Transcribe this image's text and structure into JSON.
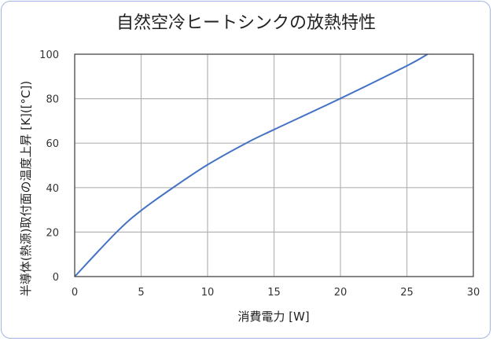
{
  "chart_data": {
    "type": "line",
    "title": "自然空冷ヒートシンクの放熱特性",
    "xlabel": "消費電力 [W]",
    "ylabel": "半導体(熱源)取付面の温度上昇 [K]([°C])",
    "xlim": [
      0,
      30
    ],
    "ylim": [
      0,
      100
    ],
    "xticks": [
      0,
      5,
      10,
      15,
      20,
      25,
      30
    ],
    "yticks": [
      0,
      20,
      40,
      60,
      80,
      100
    ],
    "grid": true,
    "legend": "none",
    "series": [
      {
        "color": "#4472c4",
        "x": [
          0,
          3.15,
          5,
          7.4,
          10,
          12.9,
          15,
          20,
          25,
          26.55
        ],
        "y": [
          0,
          20,
          29.7,
          40,
          50.3,
          60,
          66.1,
          80.1,
          94.8,
          100
        ]
      }
    ]
  }
}
